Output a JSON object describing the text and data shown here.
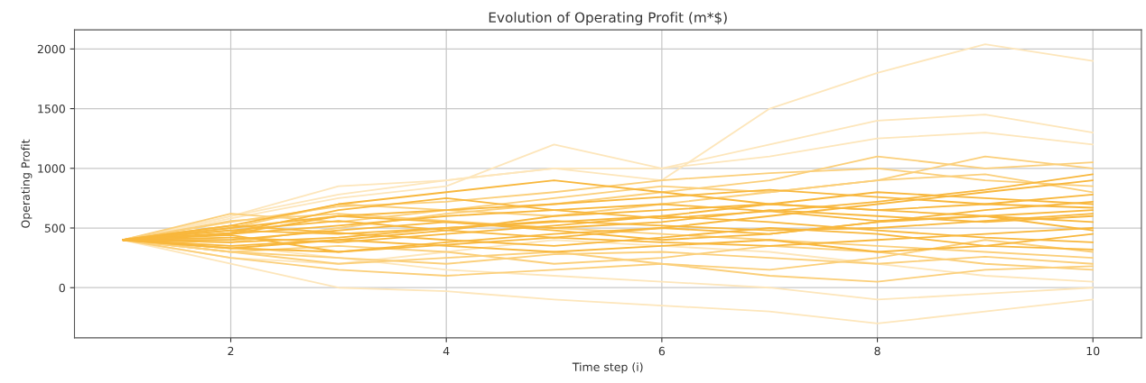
{
  "chart_data": {
    "type": "line",
    "title": "Evolution of Operating Profit (m*$)",
    "xlabel": "Time step (i)",
    "ylabel": "Operating Profit",
    "x": [
      1,
      2,
      3,
      4,
      5,
      6,
      7,
      8,
      9,
      10
    ],
    "xlim": [
      0.55,
      10.45
    ],
    "ylim": [
      -420,
      2160
    ],
    "xticks": [
      2,
      4,
      6,
      8,
      10
    ],
    "yticks": [
      0,
      500,
      1000,
      1500,
      2000
    ],
    "grid": true,
    "series": [
      {
        "color": "#fde6bb",
        "values": [
          400,
          600,
          780,
          900,
          1000,
          1000,
          1100,
          1250,
          1300,
          1200
        ]
      },
      {
        "color": "#fde6bb",
        "values": [
          400,
          600,
          850,
          900,
          1000,
          900,
          1500,
          1800,
          2040,
          1900
        ]
      },
      {
        "color": "#fde6bb",
        "values": [
          400,
          200,
          0,
          -30,
          -100,
          -150,
          -200,
          -300,
          -200,
          -100
        ]
      },
      {
        "color": "#fde6bb",
        "values": [
          400,
          250,
          200,
          300,
          400,
          350,
          300,
          200,
          100,
          50
        ]
      },
      {
        "color": "#fde6bb",
        "values": [
          400,
          580,
          750,
          850,
          1200,
          1000,
          1200,
          1400,
          1450,
          1300
        ]
      },
      {
        "color": "#fde6bb",
        "values": [
          400,
          350,
          250,
          150,
          100,
          50,
          0,
          -100,
          -50,
          0
        ]
      },
      {
        "color": "#fbcf7a",
        "values": [
          400,
          550,
          680,
          720,
          800,
          900,
          960,
          1000,
          900,
          850
        ]
      },
      {
        "color": "#fbcf7a",
        "values": [
          400,
          300,
          250,
          200,
          280,
          300,
          250,
          200,
          260,
          200
        ]
      },
      {
        "color": "#fbcf7a",
        "values": [
          400,
          250,
          150,
          100,
          150,
          200,
          100,
          50,
          150,
          180
        ]
      },
      {
        "color": "#fbcf7a",
        "values": [
          400,
          300,
          350,
          300,
          200,
          250,
          350,
          300,
          200,
          150
        ]
      },
      {
        "color": "#fbcf7a",
        "values": [
          400,
          560,
          620,
          560,
          500,
          450,
          400,
          350,
          300,
          250
        ]
      },
      {
        "color": "#fbcf7a",
        "values": [
          400,
          380,
          500,
          620,
          700,
          800,
          900,
          1100,
          1000,
          1050
        ]
      },
      {
        "color": "#fbcf7a",
        "values": [
          400,
          500,
          700,
          650,
          600,
          700,
          800,
          900,
          1100,
          1000
        ]
      },
      {
        "color": "#fbcf7a",
        "values": [
          400,
          620,
          550,
          650,
          750,
          850,
          800,
          900,
          950,
          800
        ]
      },
      {
        "color": "#fbcf7a",
        "values": [
          400,
          300,
          200,
          250,
          300,
          200,
          150,
          250,
          400,
          300
        ]
      },
      {
        "color": "#f8b73c",
        "values": [
          400,
          450,
          520,
          600,
          650,
          700,
          640,
          560,
          600,
          650
        ]
      },
      {
        "color": "#f8b73c",
        "values": [
          400,
          380,
          420,
          500,
          560,
          520,
          480,
          500,
          560,
          620
        ]
      },
      {
        "color": "#f8b73c",
        "values": [
          400,
          500,
          600,
          650,
          700,
          760,
          820,
          760,
          700,
          780
        ]
      },
      {
        "color": "#f8b73c",
        "values": [
          400,
          330,
          300,
          360,
          420,
          380,
          350,
          400,
          450,
          500
        ]
      },
      {
        "color": "#f8b73c",
        "values": [
          400,
          480,
          560,
          480,
          420,
          500,
          600,
          700,
          800,
          900
        ]
      },
      {
        "color": "#f8b73c",
        "values": [
          400,
          420,
          380,
          450,
          520,
          600,
          550,
          480,
          420,
          380
        ]
      },
      {
        "color": "#f8b73c",
        "values": [
          400,
          350,
          400,
          480,
          600,
          650,
          700,
          800,
          750,
          700
        ]
      },
      {
        "color": "#f8b73c",
        "values": [
          400,
          520,
          460,
          400,
          350,
          420,
          500,
          450,
          350,
          320
        ]
      },
      {
        "color": "#f8b73c",
        "values": [
          400,
          460,
          650,
          750,
          650,
          580,
          640,
          720,
          820,
          950
        ]
      },
      {
        "color": "#f8b73c",
        "values": [
          400,
          440,
          300,
          380,
          450,
          500,
          450,
          550,
          650,
          720
        ]
      },
      {
        "color": "#f8b73c",
        "values": [
          400,
          450,
          600,
          550,
          500,
          550,
          650,
          600,
          550,
          600
        ]
      },
      {
        "color": "#f8b73c",
        "values": [
          400,
          400,
          480,
          550,
          480,
          400,
          450,
          550,
          600,
          550
        ]
      },
      {
        "color": "#f8b73c",
        "values": [
          400,
          330,
          400,
          350,
          300,
          350,
          400,
          300,
          350,
          450
        ]
      },
      {
        "color": "#f8b73c",
        "values": [
          400,
          480,
          450,
          500,
          550,
          600,
          700,
          650,
          600,
          480
        ]
      },
      {
        "color": "#f8b73c",
        "values": [
          400,
          520,
          700,
          800,
          900,
          800,
          700,
          650,
          700,
          670
        ]
      }
    ]
  }
}
